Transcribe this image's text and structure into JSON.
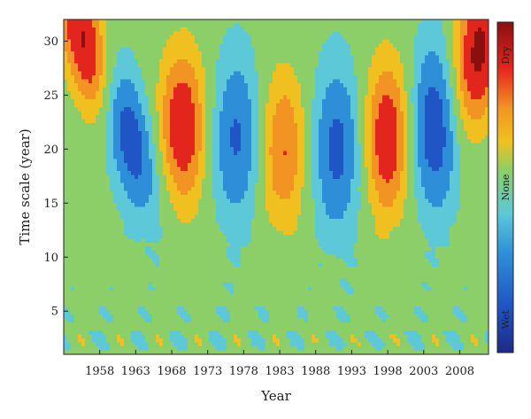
{
  "chart_data": {
    "type": "heatmap",
    "title": "",
    "xlabel": "Year",
    "ylabel": "Time scale (year)",
    "xlim": [
      1953,
      2012
    ],
    "ylim": [
      1,
      32
    ],
    "x_ticks": [
      1958,
      1963,
      1968,
      1973,
      1978,
      1983,
      1988,
      1993,
      1998,
      2003,
      2008
    ],
    "y_ticks": [
      5,
      10,
      15,
      20,
      25,
      30
    ],
    "colorbar": {
      "labels": [
        {
          "text": "Dry",
          "level": 0.9
        },
        {
          "text": "None",
          "level": 0.5
        },
        {
          "text": "Wet",
          "level": 0.1
        }
      ],
      "colors": [
        "#1e2a86",
        "#1f55c4",
        "#2e8fd8",
        "#5cc8d8",
        "#8ccf68",
        "#f0c020",
        "#f29424",
        "#e3261d",
        "#8a1010"
      ]
    },
    "features": [
      {
        "kind": "dry",
        "year": 1956.5,
        "scale": 29,
        "intensity": 1.0
      },
      {
        "kind": "wet",
        "year": 1961.5,
        "scale": 22,
        "intensity": 0.9
      },
      {
        "kind": "dry",
        "year": 1969.5,
        "scale": 22,
        "intensity": 0.8
      },
      {
        "kind": "wet",
        "year": 1977.0,
        "scale": 21,
        "intensity": 0.6
      },
      {
        "kind": "dry",
        "year": 1983.5,
        "scale": 20,
        "intensity": 0.6
      },
      {
        "kind": "wet",
        "year": 1991.0,
        "scale": 20,
        "intensity": 0.65
      },
      {
        "kind": "dry",
        "year": 1998.0,
        "scale": 21,
        "intensity": 0.8
      },
      {
        "kind": "wet",
        "year": 2004.5,
        "scale": 22,
        "intensity": 0.8
      },
      {
        "kind": "dry",
        "year": 2010.5,
        "scale": 29,
        "intensity": 0.9
      }
    ]
  }
}
